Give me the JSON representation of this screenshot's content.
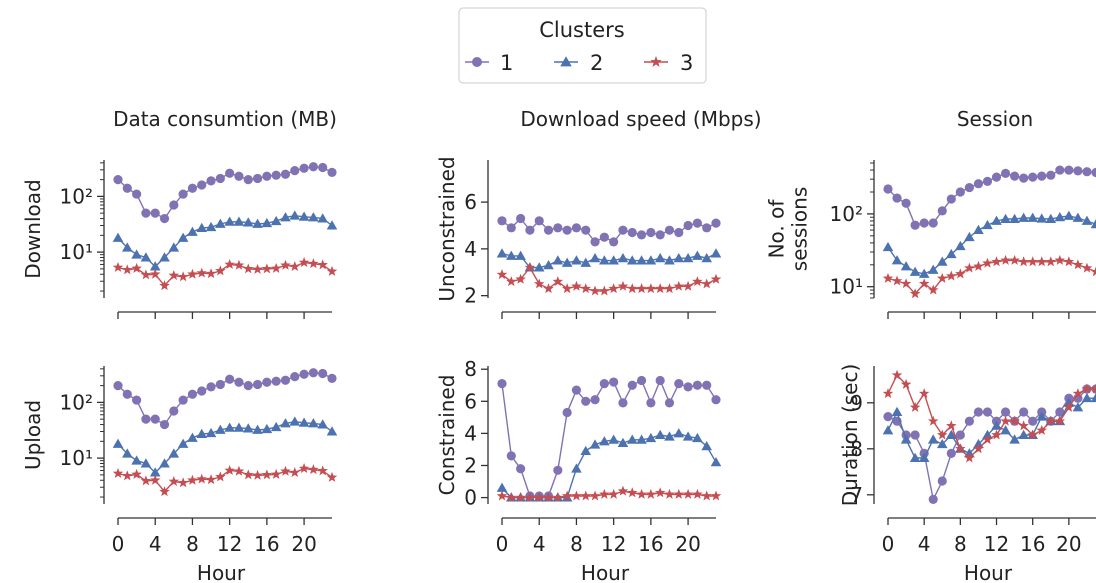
{
  "legend": {
    "title": "Clusters",
    "placement": "top-center",
    "entries": [
      {
        "label": "1",
        "color": "#8172b3",
        "marker": "circle"
      },
      {
        "label": "2",
        "color": "#4c72b0",
        "marker": "triangle"
      },
      {
        "label": "3",
        "color": "#c44e52",
        "marker": "star"
      }
    ]
  },
  "column_titles": [
    "Data consumtion (MB)",
    "Download speed (Mbps)",
    "Session"
  ],
  "xlabel": "Hour",
  "chart_data": [
    {
      "type": "line",
      "scale": "log",
      "ylabel": "Download",
      "xlim": [
        0,
        23
      ],
      "ylim": [
        1.5,
        450
      ],
      "yticks": [
        10,
        100
      ],
      "ytick_labels": [
        "10¹",
        "10²"
      ],
      "x": [
        0,
        1,
        2,
        3,
        4,
        5,
        6,
        7,
        8,
        9,
        10,
        11,
        12,
        13,
        14,
        15,
        16,
        17,
        18,
        19,
        20,
        21,
        22,
        23
      ],
      "series": [
        {
          "name": "1",
          "values": [
            200,
            140,
            110,
            50,
            50,
            40,
            70,
            110,
            140,
            160,
            190,
            210,
            260,
            230,
            200,
            210,
            230,
            240,
            250,
            290,
            320,
            340,
            330,
            270
          ]
        },
        {
          "name": "2",
          "values": [
            18,
            12,
            9,
            8,
            5.5,
            8,
            12,
            18,
            23,
            27,
            28,
            32,
            35,
            35,
            34,
            32,
            33,
            36,
            42,
            45,
            43,
            42,
            40,
            30
          ]
        },
        {
          "name": "3",
          "values": [
            5.3,
            4.8,
            5.1,
            3.9,
            4,
            2.5,
            3.8,
            3.6,
            4,
            4.2,
            4.1,
            4.6,
            6,
            5.8,
            5,
            4.9,
            5,
            5.1,
            5.8,
            5.5,
            6.5,
            6.2,
            5.9,
            4.5
          ]
        }
      ]
    },
    {
      "type": "line",
      "scale": "linear",
      "ylabel": "Unconstrained",
      "xlim": [
        0,
        23
      ],
      "ylim": [
        1.9,
        7.8
      ],
      "yticks": [
        2,
        4,
        6
      ],
      "ytick_labels": [
        "2",
        "4",
        "6"
      ],
      "x": [
        0,
        1,
        2,
        3,
        4,
        5,
        6,
        7,
        8,
        9,
        10,
        11,
        12,
        13,
        14,
        15,
        16,
        17,
        18,
        19,
        20,
        21,
        22,
        23
      ],
      "series": [
        {
          "name": "1",
          "values": [
            5.2,
            4.9,
            5.3,
            4.8,
            5.2,
            4.8,
            4.9,
            4.8,
            4.9,
            4.8,
            4.3,
            4.5,
            4.3,
            4.8,
            4.7,
            4.6,
            4.7,
            4.6,
            4.8,
            4.7,
            5.0,
            5.1,
            4.9,
            5.1
          ]
        },
        {
          "name": "2",
          "values": [
            3.8,
            3.7,
            3.7,
            3.2,
            3.2,
            3.3,
            3.5,
            3.4,
            3.5,
            3.4,
            3.6,
            3.5,
            3.5,
            3.6,
            3.5,
            3.5,
            3.5,
            3.6,
            3.5,
            3.6,
            3.6,
            3.7,
            3.6,
            3.8
          ]
        },
        {
          "name": "3",
          "values": [
            2.9,
            2.6,
            2.7,
            3.2,
            2.5,
            2.3,
            2.6,
            2.3,
            2.4,
            2.3,
            2.2,
            2.2,
            2.3,
            2.4,
            2.3,
            2.3,
            2.3,
            2.3,
            2.3,
            2.4,
            2.4,
            2.6,
            2.5,
            2.7
          ]
        }
      ]
    },
    {
      "type": "line",
      "scale": "log",
      "ylabel": "No. of\nsessions",
      "xlim": [
        0,
        23
      ],
      "ylim": [
        7,
        550
      ],
      "yticks": [
        10,
        100
      ],
      "ytick_labels": [
        "10¹",
        "10²"
      ],
      "x": [
        0,
        1,
        2,
        3,
        4,
        5,
        6,
        7,
        8,
        9,
        10,
        11,
        12,
        13,
        14,
        15,
        16,
        17,
        18,
        19,
        20,
        21,
        22,
        23
      ],
      "series": [
        {
          "name": "1",
          "values": [
            220,
            165,
            140,
            70,
            75,
            75,
            110,
            160,
            200,
            230,
            260,
            280,
            320,
            360,
            330,
            310,
            320,
            330,
            340,
            400,
            400,
            390,
            380,
            370
          ]
        },
        {
          "name": "2",
          "values": [
            35,
            23,
            19,
            16,
            15,
            17,
            22,
            28,
            36,
            48,
            60,
            70,
            80,
            85,
            85,
            88,
            88,
            86,
            85,
            90,
            94,
            88,
            80,
            72
          ]
        },
        {
          "name": "3",
          "values": [
            13,
            12,
            11,
            8,
            11,
            9,
            13,
            14,
            15,
            18,
            19,
            21,
            22,
            23,
            23,
            22,
            22,
            22,
            22,
            23,
            22,
            20,
            18,
            16
          ]
        }
      ]
    },
    {
      "type": "line",
      "scale": "log",
      "ylabel": "Upload",
      "xlim": [
        0,
        23
      ],
      "ylim": [
        1.5,
        450
      ],
      "yticks": [
        10,
        100
      ],
      "ytick_labels": [
        "10¹",
        "10²"
      ],
      "x": [
        0,
        1,
        2,
        3,
        4,
        5,
        6,
        7,
        8,
        9,
        10,
        11,
        12,
        13,
        14,
        15,
        16,
        17,
        18,
        19,
        20,
        21,
        22,
        23
      ],
      "series": [
        {
          "name": "1",
          "values": [
            200,
            140,
            110,
            50,
            50,
            40,
            70,
            110,
            140,
            160,
            190,
            210,
            260,
            230,
            200,
            210,
            230,
            240,
            250,
            290,
            320,
            340,
            330,
            270
          ]
        },
        {
          "name": "2",
          "values": [
            18,
            12,
            9,
            8,
            5.5,
            8,
            12,
            18,
            23,
            27,
            28,
            32,
            35,
            35,
            34,
            32,
            33,
            36,
            42,
            45,
            43,
            42,
            40,
            30
          ]
        },
        {
          "name": "3",
          "values": [
            5.3,
            4.8,
            5.1,
            3.9,
            4,
            2.5,
            3.8,
            3.6,
            4,
            4.2,
            4.1,
            4.6,
            6,
            5.8,
            5,
            4.9,
            5,
            5.1,
            5.8,
            5.5,
            6.5,
            6.2,
            5.9,
            4.5
          ]
        }
      ]
    },
    {
      "type": "line",
      "scale": "linear",
      "ylabel": "Constrained",
      "xlim": [
        0,
        23
      ],
      "ylim": [
        -0.4,
        8.2
      ],
      "yticks": [
        0,
        2,
        4,
        6,
        8
      ],
      "ytick_labels": [
        "0",
        "2",
        "4",
        "6",
        "8"
      ],
      "x": [
        0,
        1,
        2,
        3,
        4,
        5,
        6,
        7,
        8,
        9,
        10,
        11,
        12,
        13,
        14,
        15,
        16,
        17,
        18,
        19,
        20,
        21,
        22,
        23
      ],
      "series": [
        {
          "name": "1",
          "values": [
            7.1,
            2.6,
            1.8,
            0.1,
            0.1,
            0.1,
            1.7,
            5.3,
            6.7,
            6.0,
            6.1,
            7.1,
            7.2,
            5.9,
            7.0,
            7.3,
            5.9,
            7.3,
            5.9,
            7.1,
            6.9,
            7.0,
            7.0,
            6.1
          ]
        },
        {
          "name": "2",
          "values": [
            0.6,
            0,
            0,
            0,
            0,
            0,
            0,
            0,
            1.8,
            2.9,
            3.3,
            3.5,
            3.6,
            3.4,
            3.6,
            3.6,
            3.7,
            3.9,
            3.8,
            4.0,
            3.8,
            3.7,
            3.2,
            2.2
          ]
        },
        {
          "name": "3",
          "values": [
            0.1,
            0,
            0,
            0,
            0,
            0,
            0,
            0.1,
            0.1,
            0.1,
            0.1,
            0.2,
            0.2,
            0.4,
            0.3,
            0.2,
            0.2,
            0.3,
            0.2,
            0.2,
            0.2,
            0.2,
            0.1,
            0.1
          ]
        }
      ]
    },
    {
      "type": "line",
      "scale": "linear",
      "ylabel": "Duration (sec)",
      "xlim": [
        0,
        23
      ],
      "ylim": [
        6.8,
        9.8
      ],
      "yticks": [
        7,
        8,
        9
      ],
      "ytick_labels": [
        "7",
        "8",
        "9"
      ],
      "x": [
        0,
        1,
        2,
        3,
        4,
        5,
        6,
        7,
        8,
        9,
        10,
        11,
        12,
        13,
        14,
        15,
        16,
        17,
        18,
        19,
        20,
        21,
        22,
        23
      ],
      "series": [
        {
          "name": "1",
          "values": [
            8.7,
            8.6,
            8.3,
            8.3,
            7.9,
            6.9,
            7.3,
            7.9,
            8.3,
            8.6,
            8.8,
            8.8,
            8.6,
            8.8,
            8.6,
            8.8,
            8.6,
            8.8,
            8.6,
            8.8,
            9.1,
            9.1,
            9.3,
            9.3
          ]
        },
        {
          "name": "2",
          "values": [
            8.4,
            8.8,
            8.2,
            7.8,
            7.8,
            8.2,
            8.1,
            8.3,
            8.0,
            7.9,
            8.1,
            8.3,
            8.5,
            8.4,
            8.2,
            8.3,
            8.3,
            8.7,
            8.6,
            8.6,
            9.0,
            8.9,
            9.1,
            9.1
          ]
        },
        {
          "name": "3",
          "values": [
            9.2,
            9.6,
            9.4,
            8.9,
            9.2,
            8.6,
            8.3,
            8.5,
            8.0,
            7.8,
            8.0,
            8.2,
            8.3,
            8.6,
            8.6,
            8.5,
            8.3,
            8.4,
            8.6,
            8.6,
            8.9,
            9.2,
            9.3,
            9.3
          ]
        }
      ]
    }
  ],
  "x_ticks": [
    0,
    4,
    8,
    12,
    16,
    20
  ],
  "x_tick_labels": [
    "0",
    "4",
    "8",
    "12",
    "16",
    "20"
  ]
}
